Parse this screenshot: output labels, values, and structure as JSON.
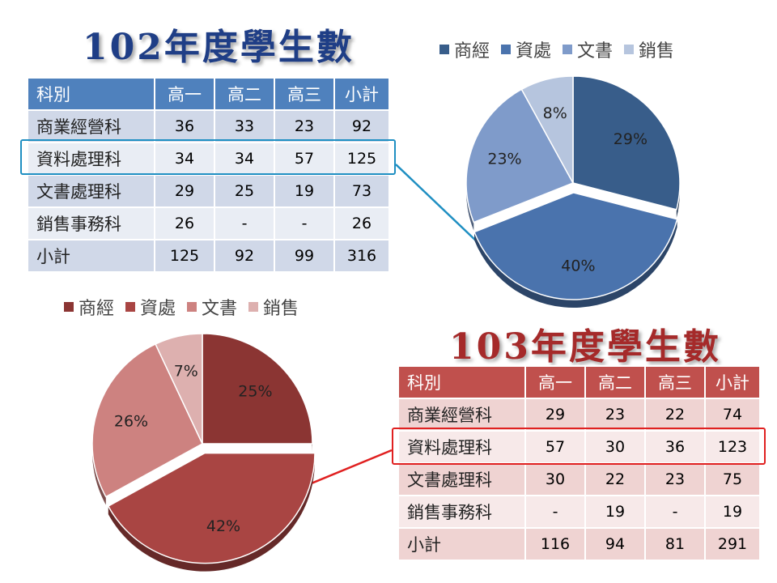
{
  "colors": {
    "blue_series": [
      "#385d8a",
      "#4a73ad",
      "#7f9bca",
      "#b6c5de"
    ],
    "red_series": [
      "#8b3533",
      "#a94543",
      "#cd8280",
      "#ddb0af"
    ],
    "blue_header": "#4f81bd",
    "red_header": "#c0504d"
  },
  "table102": {
    "title": "102年度學生數",
    "headers": [
      "科別",
      "高一",
      "高二",
      "高三",
      "小計"
    ],
    "rows": [
      [
        "商業經營科",
        "36",
        "33",
        "23",
        "92"
      ],
      [
        "資料處理科",
        "34",
        "34",
        "57",
        "125"
      ],
      [
        "文書處理科",
        "29",
        "25",
        "19",
        "73"
      ],
      [
        "銷售事務科",
        "26",
        "-",
        "-",
        "26"
      ],
      [
        "小計",
        "125",
        "92",
        "99",
        "316"
      ]
    ]
  },
  "table103": {
    "title": "103年度學生數",
    "headers": [
      "科別",
      "高一",
      "高二",
      "高三",
      "小計"
    ],
    "rows": [
      [
        "商業經營科",
        "29",
        "23",
        "22",
        "74"
      ],
      [
        "資料處理科",
        "57",
        "30",
        "36",
        "123"
      ],
      [
        "文書處理科",
        "30",
        "22",
        "23",
        "75"
      ],
      [
        "銷售事務科",
        "-",
        "19",
        "-",
        "19"
      ],
      [
        "小計",
        "116",
        "94",
        "81",
        "291"
      ]
    ]
  },
  "chart_data": [
    {
      "type": "pie",
      "categories": [
        "商經",
        "資處",
        "文書",
        "銷售"
      ],
      "values": [
        29,
        40,
        23,
        8
      ],
      "labels": [
        "29%",
        "40%",
        "23%",
        "8%"
      ],
      "legend": "top",
      "exploded": "資處"
    },
    {
      "type": "pie",
      "categories": [
        "商經",
        "資處",
        "文書",
        "銷售"
      ],
      "values": [
        25,
        42,
        26,
        7
      ],
      "labels": [
        "25%",
        "42%",
        "26%",
        "7%"
      ],
      "legend": "top",
      "exploded": "資處"
    }
  ]
}
